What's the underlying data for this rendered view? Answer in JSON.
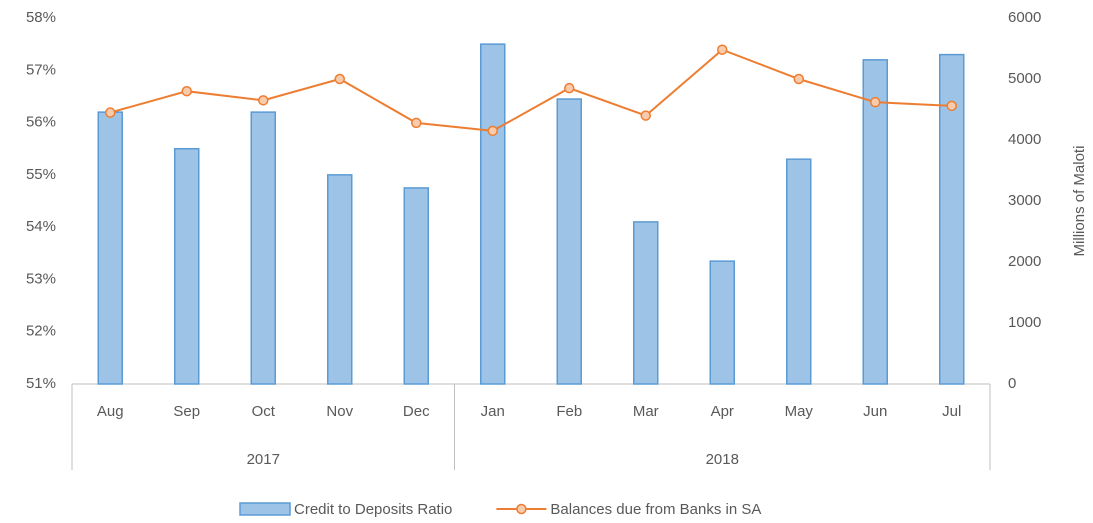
{
  "chart_data": {
    "type": "bar-line",
    "categories": [
      "Aug",
      "Sep",
      "Oct",
      "Nov",
      "Dec",
      "Jan",
      "Feb",
      "Mar",
      "Apr",
      "May",
      "Jun",
      "Jul"
    ],
    "groups": [
      {
        "label": "2017",
        "size": 5
      },
      {
        "label": "2018",
        "size": 7
      }
    ],
    "series": [
      {
        "name": "Credit to Deposits Ratio",
        "type": "bar",
        "color": "#9dc3e6",
        "edge_color": "#5b9bd5",
        "axis": "y",
        "values": [
          56.2,
          55.5,
          56.2,
          55.0,
          54.75,
          57.5,
          56.45,
          54.1,
          53.35,
          55.3,
          57.2,
          57.3
        ]
      },
      {
        "name": "Balances due from Banks in SA",
        "type": "line",
        "color": "#ed7d31",
        "axis": "y2",
        "values": [
          4450,
          4800,
          4650,
          5000,
          4280,
          4150,
          4850,
          4400,
          5480,
          5000,
          4620,
          4560
        ]
      }
    ],
    "ylim": [
      51,
      58
    ],
    "yticks": [
      {
        "value": 51,
        "label": "51%"
      },
      {
        "value": 52,
        "label": "52%"
      },
      {
        "value": 53,
        "label": "53%"
      },
      {
        "value": 54,
        "label": "54%"
      },
      {
        "value": 55,
        "label": "55%"
      },
      {
        "value": 56,
        "label": "56%"
      },
      {
        "value": 57,
        "label": "57%"
      },
      {
        "value": 58,
        "label": "58%"
      }
    ],
    "y2lim": [
      0,
      6000
    ],
    "y2ticks": [
      0,
      1000,
      2000,
      3000,
      4000,
      5000,
      6000
    ],
    "y2label": "Millions of Maloti",
    "grid": false,
    "legend": "bottom"
  }
}
